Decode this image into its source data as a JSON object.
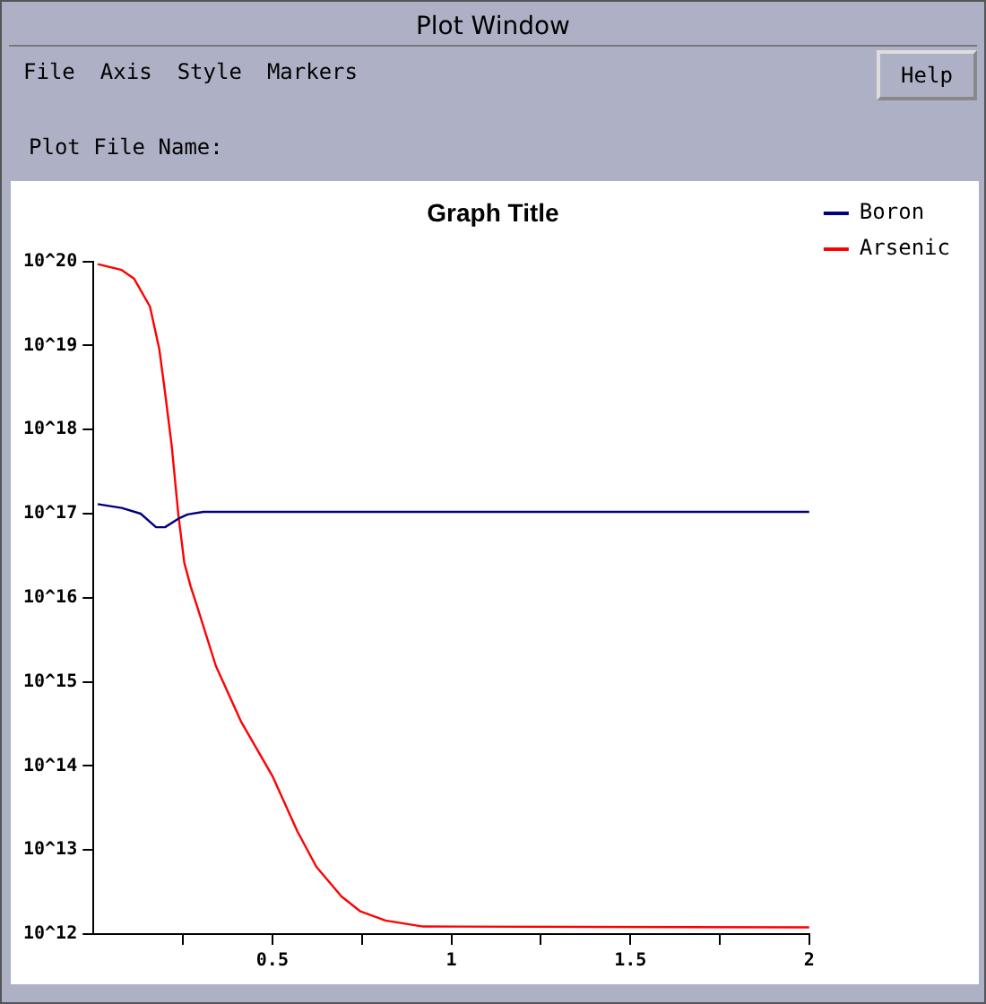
{
  "chart_data": {
    "type": "line",
    "title": "Graph Title",
    "annotations": [
      "Plot Window",
      "File",
      "Axis",
      "Style",
      "Markers",
      "Help",
      "Plot File Name:"
    ],
    "log": "y",
    "grid": false,
    "legend": "top right",
    "line_style": "solid",
    "xlim": [
      0,
      2
    ],
    "xticks": [
      {
        "value": 0.25,
        "label": null
      },
      0.5,
      {
        "value": 0.75,
        "label": null
      },
      1,
      {
        "value": 1.25,
        "label": null
      },
      1.5,
      {
        "value": 1.75,
        "label": null
      },
      2
    ],
    "ylim": [
      1000000000000.0,
      1e+20
    ],
    "yticks": [
      {
        "value": 1000000000000.0,
        "label": "10^12"
      },
      {
        "value": 10000000000000.0,
        "label": "10^13"
      },
      {
        "value": 100000000000000.0,
        "label": "10^14"
      },
      {
        "value": 1000000000000000.0,
        "label": "10^15"
      },
      {
        "value": 1e+16,
        "label": "10^16"
      },
      {
        "value": 1e+17,
        "label": "10^17"
      },
      {
        "value": 1e+18,
        "label": "10^18"
      },
      {
        "value": 1e+19,
        "label": "10^19"
      },
      {
        "value": 1e+20,
        "label": "10^20"
      }
    ],
    "series": [
      {
        "name": "Boron",
        "color": "#000080",
        "x": [
          0.012,
          0.079,
          0.132,
          0.175,
          0.2,
          0.237,
          0.263,
          0.307,
          2
        ],
        "values": [
          1.3e+17,
          1.17e+17,
          1e+17,
          6.9e+16,
          6.9e+16,
          8.7e+16,
          9.8e+16,
          1.05e+17,
          1.05e+17
        ]
      },
      {
        "name": "Arsenic",
        "color": "#ff0000",
        "x": [
          0.012,
          0.079,
          0.114,
          0.158,
          0.184,
          0.2,
          0.219,
          0.237,
          0.254,
          0.272,
          0.289,
          0.342,
          0.412,
          0.5,
          0.57,
          0.623,
          0.693,
          0.746,
          0.816,
          0.921,
          2
        ],
        "values": [
          9.3e+19,
          7.9e+19,
          6.2e+19,
          2.9e+19,
          9.1e+18,
          2.8e+18,
          6.3e+17,
          1e+17,
          2.6e+16,
          1.35e+16,
          8100000000000000.0,
          1550000000000000.0,
          340000000000000.0,
          76000000000000.0,
          16600000000000.0,
          6300000000000.0,
          2800000000000.0,
          1860000000000.0,
          1450000000000.0,
          1230000000000.0,
          1200000000000.0
        ]
      }
    ]
  }
}
